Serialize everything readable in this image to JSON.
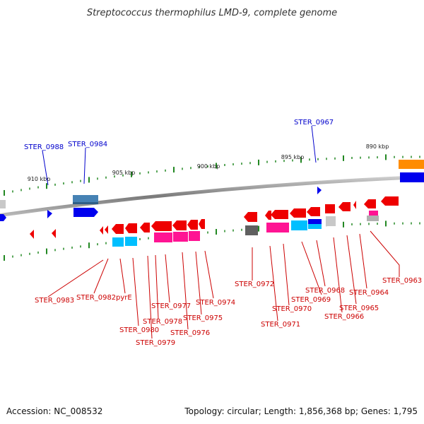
{
  "title": "Streptococcus thermophilus LMD-9, complete genome",
  "footer": {
    "accession": "Accession: NC_008532",
    "summary": "Topology: circular; Length: 1,856,368 bp; Genes: 1,795"
  },
  "scale_labels": [
    "910 kbp",
    "905 kbp",
    "900 kbp",
    "895 kbp",
    "890 kbp"
  ],
  "forward_labels": [
    "STER_0988",
    "STER_0984",
    "STER_0967"
  ],
  "reverse_labels": [
    "STER_0983",
    "STER_0982",
    "pyrE",
    "STER_0980",
    "STER_0979",
    "STER_0978",
    "STER_0977",
    "STER_0976",
    "STER_0975",
    "STER_0974",
    "STER_0972",
    "STER_0971",
    "STER_0970",
    "STER_0969",
    "STER_0968",
    "STER_0966",
    "STER_0965",
    "STER_0964",
    "STER_0963"
  ],
  "colors": {
    "forward_label": "#0000cc",
    "reverse_label": "#cc0000",
    "backbone": "#888888",
    "gene_red": "#ee0000",
    "gene_blue": "#0000ee",
    "gene_steel": "#4682b4",
    "gene_magenta": "#ff1493",
    "gene_cyan": "#00bfff",
    "gene_orange": "#ff8c00",
    "gene_grey": "#c0c0c0",
    "gene_darkgrey": "#606060",
    "tick": "#228822"
  }
}
